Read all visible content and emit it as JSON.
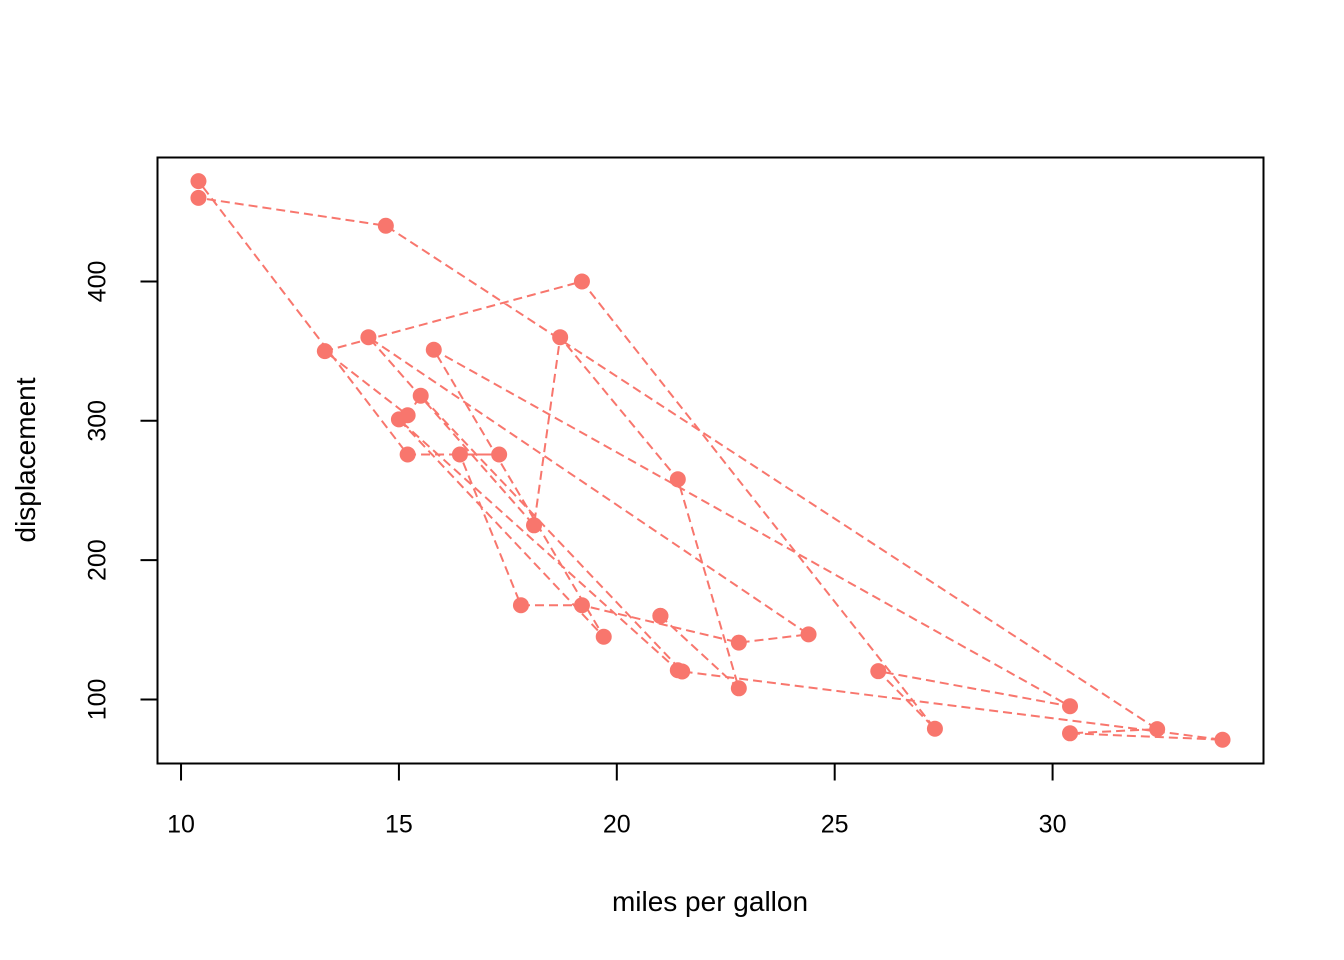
{
  "chart_data": {
    "type": "line",
    "title": "",
    "xlabel": "miles per gallon",
    "ylabel": "displacement",
    "xlim": [
      9.46,
      34.84
    ],
    "ylim": [
      54.03,
      488.97
    ],
    "xticks": [
      10,
      15,
      20,
      25,
      30
    ],
    "yticks": [
      100,
      200,
      300,
      400
    ],
    "grid": false,
    "legend": "none",
    "series": [
      {
        "color": "#F8766D",
        "line_style": "dashed",
        "marker": "filled-circle",
        "x": [
          21.0,
          21.0,
          22.8,
          21.4,
          18.7,
          18.1,
          14.3,
          24.4,
          22.8,
          19.2,
          17.8,
          16.4,
          17.3,
          15.2,
          10.4,
          10.4,
          14.7,
          32.4,
          30.4,
          33.9,
          21.5,
          15.5,
          15.2,
          13.3,
          19.2,
          27.3,
          26.0,
          30.4,
          15.8,
          19.7,
          15.0,
          21.4
        ],
        "y": [
          160,
          160,
          108,
          258,
          360,
          225,
          360,
          146.7,
          140.8,
          167.6,
          167.6,
          275.8,
          275.8,
          275.8,
          472,
          460,
          440,
          78.7,
          75.7,
          71.1,
          120.1,
          318,
          304,
          350,
          400,
          79,
          120.3,
          95.1,
          351,
          145,
          301,
          121
        ]
      }
    ]
  }
}
